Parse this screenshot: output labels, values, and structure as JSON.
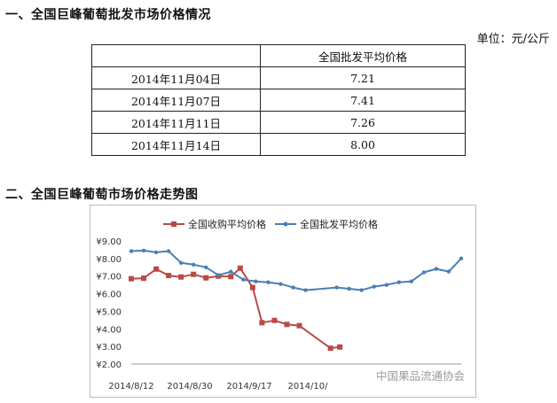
{
  "section1": {
    "title": "一、全国巨峰葡萄批发市场价格情况",
    "unit": "单位：元/公斤",
    "table": {
      "header": [
        "",
        "全国批发平均价格"
      ],
      "rows": [
        {
          "date": "2014年11月04日",
          "value": "7.21"
        },
        {
          "date": "2014年11月07日",
          "value": "7.41"
        },
        {
          "date": "2014年11月11日",
          "value": "7.26"
        },
        {
          "date": "2014年11月14日",
          "value": "8.00"
        }
      ]
    }
  },
  "section2": {
    "title": "二、全国巨峰葡萄市场价格走势图"
  },
  "watermark": "中国果品流通协会",
  "chart_data": {
    "type": "line",
    "title": "",
    "xlabel": "",
    "ylabel": "",
    "ylim": [
      2,
      9
    ],
    "y_ticks": [
      "¥2.00",
      "¥3.00",
      "¥4.00",
      "¥5.00",
      "¥6.00",
      "¥7.00",
      "¥8.00",
      "¥9.00"
    ],
    "x_tick_labels": [
      "2014/8/12",
      "2014/8/30",
      "2014/9/17",
      "2014/10/"
    ],
    "legend_position": "top",
    "grid": false,
    "series": [
      {
        "name": "全国收购平均价格",
        "color": "#b94a48",
        "marker": "square",
        "points": [
          {
            "x": 0,
            "y": 6.85
          },
          {
            "x": 4,
            "y": 6.88
          },
          {
            "x": 8,
            "y": 7.4
          },
          {
            "x": 12,
            "y": 7.03
          },
          {
            "x": 16,
            "y": 6.95
          },
          {
            "x": 20,
            "y": 7.1
          },
          {
            "x": 24,
            "y": 6.9
          },
          {
            "x": 28,
            "y": 7.0
          },
          {
            "x": 32,
            "y": 6.97
          },
          {
            "x": 35,
            "y": 7.45
          },
          {
            "x": 39,
            "y": 6.35
          },
          {
            "x": 42,
            "y": 4.35
          },
          {
            "x": 46,
            "y": 4.48
          },
          {
            "x": 50,
            "y": 4.25
          },
          {
            "x": 54,
            "y": 4.18
          },
          {
            "x": 64,
            "y": 2.9
          },
          {
            "x": 67,
            "y": 2.97
          }
        ]
      },
      {
        "name": "全国批发平均价格",
        "color": "#4a7eb5",
        "marker": "dot",
        "points": [
          {
            "x": 0,
            "y": 8.42
          },
          {
            "x": 4,
            "y": 8.45
          },
          {
            "x": 8,
            "y": 8.35
          },
          {
            "x": 12,
            "y": 8.42
          },
          {
            "x": 16,
            "y": 7.75
          },
          {
            "x": 20,
            "y": 7.65
          },
          {
            "x": 24,
            "y": 7.5
          },
          {
            "x": 28,
            "y": 7.05
          },
          {
            "x": 32,
            "y": 7.25
          },
          {
            "x": 36,
            "y": 6.8
          },
          {
            "x": 40,
            "y": 6.7
          },
          {
            "x": 44,
            "y": 6.65
          },
          {
            "x": 48,
            "y": 6.55
          },
          {
            "x": 52,
            "y": 6.35
          },
          {
            "x": 56,
            "y": 6.2
          },
          {
            "x": 66,
            "y": 6.35
          },
          {
            "x": 70,
            "y": 6.28
          },
          {
            "x": 74,
            "y": 6.2
          },
          {
            "x": 78,
            "y": 6.4
          },
          {
            "x": 82,
            "y": 6.5
          },
          {
            "x": 86,
            "y": 6.65
          },
          {
            "x": 90,
            "y": 6.7
          },
          {
            "x": 94,
            "y": 7.21
          },
          {
            "x": 98,
            "y": 7.41
          },
          {
            "x": 102,
            "y": 7.26
          },
          {
            "x": 106,
            "y": 8.0
          }
        ]
      }
    ]
  }
}
